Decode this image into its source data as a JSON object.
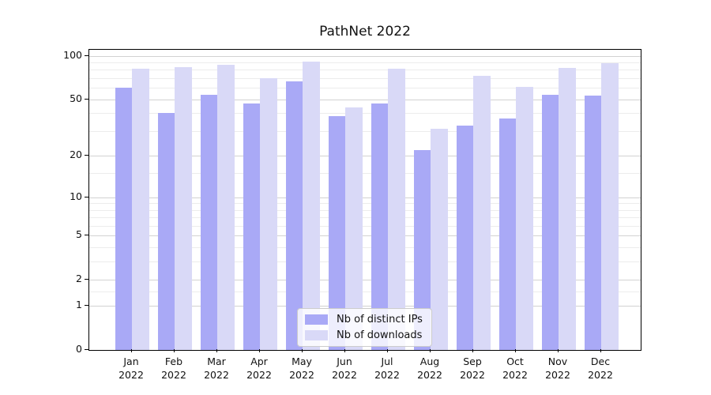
{
  "chart_data": {
    "type": "bar",
    "title": "PathNet 2022",
    "categories": [
      "Jan",
      "Feb",
      "Mar",
      "Apr",
      "May",
      "Jun",
      "Jul",
      "Aug",
      "Sep",
      "Oct",
      "Nov",
      "Dec"
    ],
    "year_label": "2022",
    "series": [
      {
        "name": "Nb of distinct IPs",
        "color": "#a9a9f6",
        "values": [
          60,
          40,
          54,
          47,
          67,
          38,
          47,
          22,
          33,
          37,
          54,
          53
        ]
      },
      {
        "name": "Nb of downloads",
        "color": "#d9d9f7",
        "values": [
          81,
          84,
          87,
          70,
          91,
          44,
          81,
          31,
          73,
          61,
          83,
          89
        ]
      }
    ],
    "xlabel": "",
    "ylabel": "",
    "yscale": "log1p",
    "ylim": [
      0,
      110
    ],
    "yticks": [
      0,
      1,
      2,
      5,
      10,
      20,
      50,
      100
    ],
    "minor_gridlines": [
      1.5,
      3,
      4,
      6,
      7,
      8,
      9,
      15,
      30,
      40,
      60,
      70,
      80,
      90
    ],
    "grid": true,
    "legend_position": "lower center"
  }
}
